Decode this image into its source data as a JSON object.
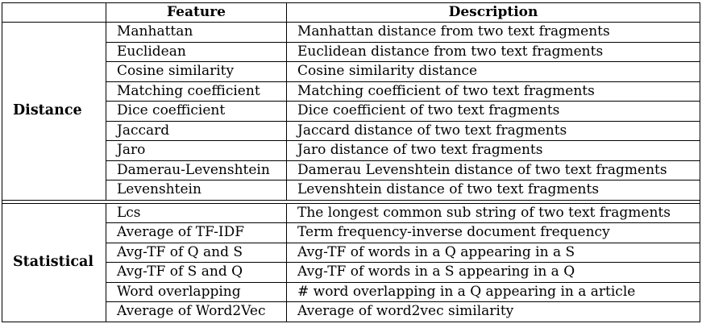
{
  "table": {
    "headers": [
      "",
      "Feature",
      "Description"
    ],
    "groups": [
      {
        "name": "Distance",
        "rows": [
          {
            "feature": "Manhattan",
            "description": "Manhattan distance from two text fragments"
          },
          {
            "feature": "Euclidean",
            "description": "Euclidean distance from two text fragments"
          },
          {
            "feature": "Cosine similarity",
            "description": "Cosine similarity distance"
          },
          {
            "feature": "Matching coefficient",
            "description": "Matching coefficient of two text fragments"
          },
          {
            "feature": "Dice coefficient",
            "description": "Dice coefficient of two text fragments"
          },
          {
            "feature": "Jaccard",
            "description": "Jaccard distance of two text fragments"
          },
          {
            "feature": "Jaro",
            "description": "Jaro distance of two text fragments"
          },
          {
            "feature": "Damerau-Levenshtein",
            "description": "Damerau Levenshtein distance of two text fragments"
          },
          {
            "feature": "Levenshtein",
            "description": "Levenshtein distance of two text fragments"
          }
        ]
      },
      {
        "name": "Statistical",
        "rows": [
          {
            "feature": "Lcs",
            "description": "The longest common sub string of two text fragments"
          },
          {
            "feature": "Average of TF-IDF",
            "description": "Term frequency-inverse document frequency"
          },
          {
            "feature": "Avg-TF of Q and S",
            "description": "Avg-TF of words in a Q appearing in a S"
          },
          {
            "feature": "Avg-TF of S and Q",
            "description": "Avg-TF of words in a S appearing in a Q"
          },
          {
            "feature": "Word overlapping",
            "description": "# word overlapping in a Q appearing in a article"
          },
          {
            "feature": "Average of Word2Vec",
            "description": "Average of word2vec similarity"
          }
        ]
      }
    ]
  }
}
